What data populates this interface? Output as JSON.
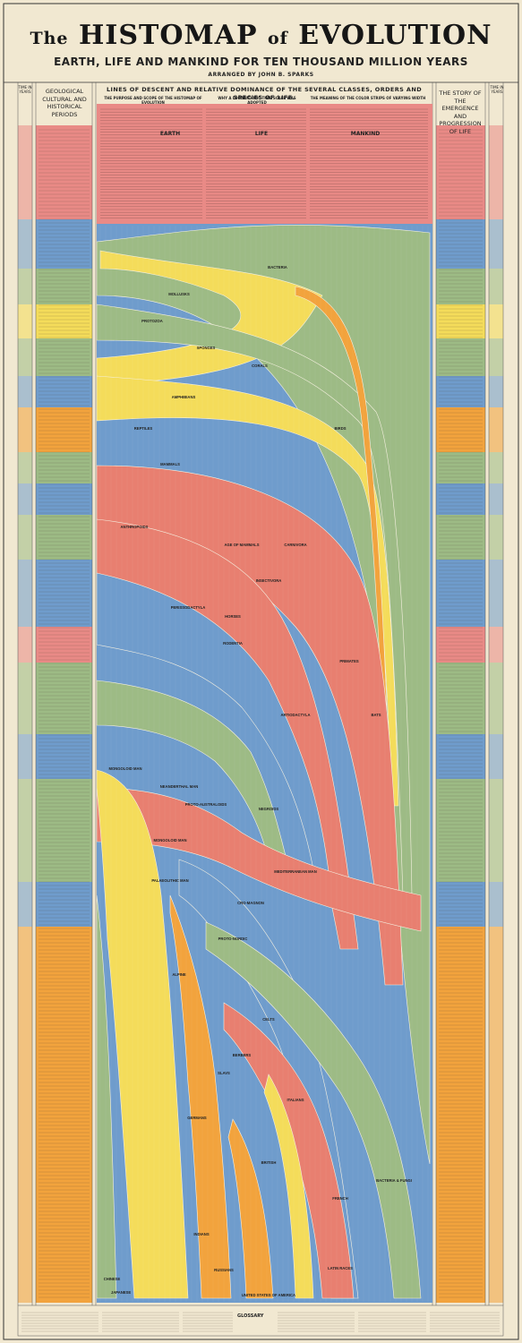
{
  "title": {
    "prefix": "The",
    "histomap": "HISTOMAP",
    "of": "of",
    "evolution": "EVOLUTION"
  },
  "subtitle": "EARTH, LIFE AND MANKIND FOR TEN THOUSAND MILLION YEARS",
  "byline": "ARRANGED BY JOHN B. SPARKS",
  "headers": {
    "time_years": "TIME IN YEARS",
    "geological": "GEOLOGICAL CULTURAL AND HISTORICAL PERIODS",
    "lines": "LINES OF DESCENT AND RELATIVE DOMINANCE OF THE SEVERAL CLASSES, ORDERS AND SPECIES OF LIFE.",
    "story": "THE STORY OF THE EMERGENCE AND PROGRESSION OF LIFE",
    "intro_heads": [
      "THE PURPOSE AND SCOPE OF THE HISTOMAP OF EVOLUTION",
      "WHY A LOGARITHMIC TIME SCALE WAS ADOPTED",
      "THE MEANING OF THE COLOR STRIPS OF VARYING WIDTH"
    ],
    "ages": [
      "EARTH",
      "LIFE",
      "MANKIND"
    ]
  },
  "stream_labels": [
    "BACTERIA",
    "MOLLUSKS",
    "PROTOZOA",
    "SPONGES",
    "CORALS",
    "AMPHIBIANS",
    "REPTILES",
    "MAMMALS",
    "BIRDS",
    "ANTHROPOIDS",
    "AGE OF MAMMALS",
    "CARNIVORA",
    "INSECTIVORA",
    "PERISSODACTYLA",
    "RODENTIA",
    "PRIMATES",
    "HORSES",
    "BATS",
    "ARTIODACTYLA",
    "MONGOLOID MAN",
    "NEANDERTHAL MAN",
    "PROTO-AUSTRALOIDS",
    "NEGROIDS",
    "MONGOLOID MAN",
    "PALAEOLITHIC MAN",
    "MEDITERRANEAN MAN",
    "CRO-MAGNON",
    "PROTO-NORDIC",
    "ALPINE",
    "BERBERS",
    "CELTS",
    "SLAVS",
    "GERMANS",
    "ITALIANS",
    "BRITISH",
    "FRENCH",
    "CHINESE",
    "JAPANESE",
    "INDIANS",
    "RUSSIANS",
    "UNITED STATES OF AMERICA",
    "LATIN RACES",
    "BACTERIA & FUNGI"
  ],
  "glossary_label": "GLOSSARY",
  "colors": {
    "paper": "#f1e8d1",
    "red": "#e87f70",
    "blue": "#6f9ccc",
    "green": "#9dbb85",
    "yellow": "#f4dc5a",
    "orange": "#f2a33d",
    "pink": "#e98a86"
  }
}
